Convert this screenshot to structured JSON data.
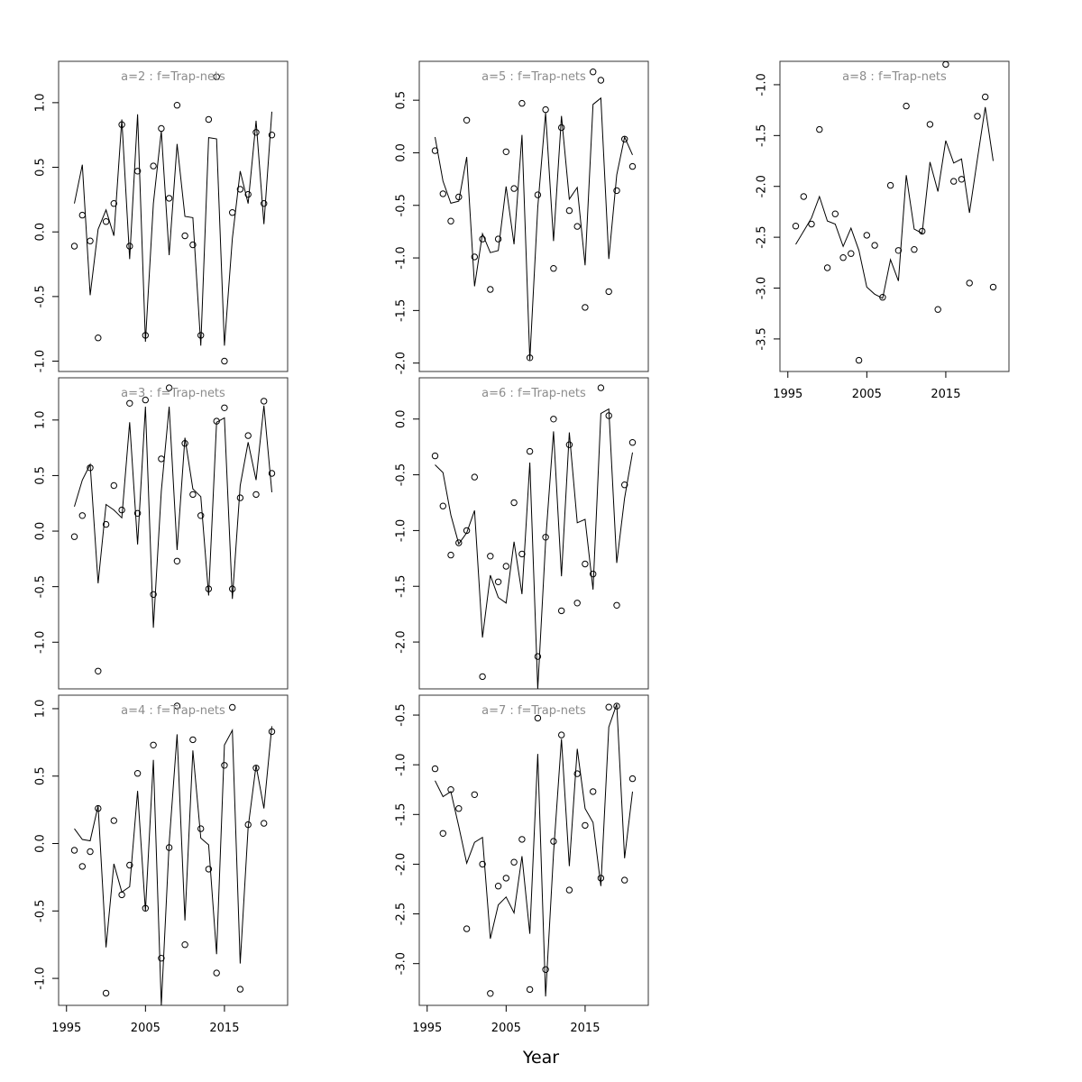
{
  "figure": {
    "xlabel": "Year"
  },
  "colors": {
    "title": "#8c8c8c",
    "marks": "#000000",
    "background": "#ffffff"
  },
  "chart_data": [
    {
      "type": "scatter",
      "title": "a=2 : f=Trap-nets",
      "x_ticks": [
        1995,
        2005,
        2015
      ],
      "y_ticks": [
        1.0,
        0.5,
        0.0,
        -0.5,
        -1.0
      ],
      "xlim": [
        1994,
        2023
      ],
      "ylim": [
        -1.08,
        1.32
      ],
      "show_x_axis": false,
      "x": [
        1996,
        1997,
        1998,
        1999,
        2000,
        2001,
        2002,
        2003,
        2004,
        2005,
        2006,
        2007,
        2008,
        2009,
        2010,
        2011,
        2012,
        2013,
        2014,
        2015,
        2016,
        2017,
        2018,
        2019,
        2020,
        2021
      ],
      "series": [
        {
          "name": "observed",
          "kind": "points",
          "values": [
            -0.11,
            0.13,
            -0.07,
            -0.82,
            0.08,
            0.22,
            0.83,
            -0.11,
            0.47,
            -0.8,
            0.51,
            0.8,
            0.26,
            0.98,
            -0.03,
            -0.1,
            -0.8,
            0.87,
            1.2,
            -1.0,
            0.15,
            0.33,
            0.29,
            0.77,
            0.22,
            0.75
          ]
        },
        {
          "name": "fitted",
          "kind": "line",
          "values": [
            0.22,
            0.52,
            -0.49,
            0.02,
            0.17,
            -0.03,
            0.87,
            -0.21,
            0.91,
            -0.85,
            0.22,
            0.78,
            -0.18,
            0.68,
            0.12,
            0.11,
            -0.88,
            0.73,
            0.72,
            -0.88,
            -0.05,
            0.47,
            0.22,
            0.86,
            0.06,
            0.93
          ]
        }
      ]
    },
    {
      "type": "scatter",
      "title": "a=5 : f=Trap-nets",
      "x_ticks": [
        1995,
        2005,
        2015
      ],
      "y_ticks": [
        0.5,
        0.0,
        -0.5,
        -1.0,
        -1.5,
        -2.0
      ],
      "xlim": [
        1994,
        2023
      ],
      "ylim": [
        -2.08,
        0.87
      ],
      "show_x_axis": false,
      "x": [
        1996,
        1997,
        1998,
        1999,
        2000,
        2001,
        2002,
        2003,
        2004,
        2005,
        2006,
        2007,
        2008,
        2009,
        2010,
        2011,
        2012,
        2013,
        2014,
        2015,
        2016,
        2017,
        2018,
        2019,
        2020,
        2021
      ],
      "series": [
        {
          "name": "observed",
          "kind": "points",
          "values": [
            0.02,
            -0.39,
            -0.65,
            -0.42,
            0.31,
            -0.99,
            -0.82,
            -1.3,
            -0.82,
            0.01,
            -0.34,
            0.47,
            -1.95,
            -0.4,
            0.41,
            -1.1,
            0.24,
            -0.55,
            -0.7,
            -1.47,
            0.77,
            0.69,
            -1.32,
            -0.36,
            0.13,
            -0.13
          ]
        },
        {
          "name": "fitted",
          "kind": "line",
          "values": [
            0.15,
            -0.27,
            -0.48,
            -0.46,
            -0.04,
            -1.27,
            -0.77,
            -0.95,
            -0.93,
            -0.32,
            -0.87,
            0.17,
            -1.97,
            -0.52,
            0.38,
            -0.84,
            0.35,
            -0.44,
            -0.33,
            -1.07,
            0.46,
            0.52,
            -1.01,
            -0.21,
            0.15,
            -0.02
          ]
        }
      ]
    },
    {
      "type": "scatter",
      "title": "a=8 : f=Trap-nets",
      "x_ticks": [
        1995,
        2005,
        2015
      ],
      "y_ticks": [
        -1.0,
        -1.5,
        -2.0,
        -2.5,
        -3.0,
        -3.5
      ],
      "xlim": [
        1994,
        2023
      ],
      "ylim": [
        -3.82,
        -0.77
      ],
      "show_x_axis": true,
      "x": [
        1996,
        1997,
        1998,
        1999,
        2000,
        2001,
        2002,
        2003,
        2004,
        2005,
        2006,
        2007,
        2008,
        2009,
        2010,
        2011,
        2012,
        2013,
        2014,
        2015,
        2016,
        2017,
        2018,
        2019,
        2020,
        2021
      ],
      "series": [
        {
          "name": "observed",
          "kind": "points",
          "values": [
            -2.39,
            -2.1,
            -2.37,
            -1.44,
            -2.8,
            -2.27,
            -2.7,
            -2.66,
            -3.71,
            -2.48,
            -2.58,
            -3.09,
            -1.99,
            -2.63,
            -1.21,
            -2.62,
            -2.44,
            -1.39,
            -3.21,
            -0.8,
            -1.95,
            -1.93,
            -2.95,
            -1.31,
            -1.12,
            -2.99
          ]
        },
        {
          "name": "fitted",
          "kind": "line",
          "values": [
            -2.57,
            -2.44,
            -2.31,
            -2.1,
            -2.34,
            -2.37,
            -2.59,
            -2.41,
            -2.63,
            -2.99,
            -3.06,
            -3.1,
            -2.72,
            -2.93,
            -1.89,
            -2.42,
            -2.46,
            -1.76,
            -2.05,
            -1.55,
            -1.77,
            -1.73,
            -2.26,
            -1.73,
            -1.22,
            -1.75
          ]
        }
      ]
    },
    {
      "type": "scatter",
      "title": "a=3 : f=Trap-nets",
      "x_ticks": [
        1995,
        2005,
        2015
      ],
      "y_ticks": [
        1.0,
        0.5,
        0.0,
        -0.5,
        -1.0
      ],
      "xlim": [
        1994,
        2023
      ],
      "ylim": [
        -1.42,
        1.38
      ],
      "show_x_axis": false,
      "x": [
        1996,
        1997,
        1998,
        1999,
        2000,
        2001,
        2002,
        2003,
        2004,
        2005,
        2006,
        2007,
        2008,
        2009,
        2010,
        2011,
        2012,
        2013,
        2014,
        2015,
        2016,
        2017,
        2018,
        2019,
        2020,
        2021
      ],
      "series": [
        {
          "name": "observed",
          "kind": "points",
          "values": [
            -0.05,
            0.14,
            0.57,
            -1.26,
            0.06,
            0.41,
            0.19,
            1.15,
            0.16,
            1.18,
            -0.57,
            0.65,
            1.29,
            -0.27,
            0.79,
            0.33,
            0.14,
            -0.52,
            0.99,
            1.11,
            -0.52,
            0.3,
            0.86,
            0.33,
            1.17,
            0.52
          ]
        },
        {
          "name": "fitted",
          "kind": "line",
          "values": [
            0.22,
            0.46,
            0.6,
            -0.47,
            0.24,
            0.19,
            0.12,
            0.98,
            -0.12,
            1.12,
            -0.87,
            0.36,
            1.12,
            -0.17,
            0.84,
            0.38,
            0.31,
            -0.58,
            0.98,
            1.02,
            -0.61,
            0.41,
            0.8,
            0.46,
            1.13,
            0.35
          ]
        }
      ]
    },
    {
      "type": "scatter",
      "title": "a=6 : f=Trap-nets",
      "x_ticks": [
        1995,
        2005,
        2015
      ],
      "y_ticks": [
        0.0,
        -0.5,
        -1.0,
        -1.5,
        -2.0
      ],
      "xlim": [
        1994,
        2023
      ],
      "ylim": [
        -2.42,
        0.37
      ],
      "show_x_axis": false,
      "x": [
        1996,
        1997,
        1998,
        1999,
        2000,
        2001,
        2002,
        2003,
        2004,
        2005,
        2006,
        2007,
        2008,
        2009,
        2010,
        2011,
        2012,
        2013,
        2014,
        2015,
        2016,
        2017,
        2018,
        2019,
        2020,
        2021
      ],
      "series": [
        {
          "name": "observed",
          "kind": "points",
          "values": [
            -0.33,
            -0.78,
            -1.22,
            -1.11,
            -1.0,
            -0.52,
            -2.31,
            -1.23,
            -1.46,
            -1.32,
            -0.75,
            -1.21,
            -0.29,
            -2.13,
            -1.06,
            0.0,
            -1.72,
            -0.23,
            -1.65,
            -1.3,
            -1.39,
            0.28,
            0.03,
            -1.67,
            -0.59,
            -0.21
          ]
        },
        {
          "name": "fitted",
          "kind": "line",
          "values": [
            -0.41,
            -0.48,
            -0.86,
            -1.12,
            -1.02,
            -0.82,
            -1.96,
            -1.4,
            -1.6,
            -1.65,
            -1.1,
            -1.57,
            -0.39,
            -2.42,
            -1.1,
            -0.11,
            -1.41,
            -0.12,
            -0.93,
            -0.9,
            -1.53,
            0.05,
            0.09,
            -1.29,
            -0.71,
            -0.3
          ]
        }
      ]
    },
    {
      "type": "scatter",
      "title": "a=4 : f=Trap-nets",
      "x_ticks": [
        1995,
        2005,
        2015
      ],
      "y_ticks": [
        1.0,
        0.5,
        0.0,
        -0.5,
        -1.0
      ],
      "xlim": [
        1994,
        2023
      ],
      "ylim": [
        -1.2,
        1.1
      ],
      "show_x_axis": true,
      "x": [
        1996,
        1997,
        1998,
        1999,
        2000,
        2001,
        2002,
        2003,
        2004,
        2005,
        2006,
        2007,
        2008,
        2009,
        2010,
        2011,
        2012,
        2013,
        2014,
        2015,
        2016,
        2017,
        2018,
        2019,
        2020,
        2021
      ],
      "series": [
        {
          "name": "observed",
          "kind": "points",
          "values": [
            -0.05,
            -0.17,
            -0.06,
            0.26,
            -1.11,
            0.17,
            -0.38,
            -0.16,
            0.52,
            -0.48,
            0.73,
            -0.85,
            -0.03,
            1.02,
            -0.75,
            0.77,
            0.11,
            -0.19,
            -0.96,
            0.58,
            1.01,
            -1.08,
            0.14,
            0.56,
            0.15,
            0.83
          ]
        },
        {
          "name": "fitted",
          "kind": "line",
          "values": [
            0.11,
            0.03,
            0.02,
            0.28,
            -0.77,
            -0.15,
            -0.36,
            -0.32,
            0.39,
            -0.5,
            0.62,
            -1.2,
            0.0,
            0.81,
            -0.57,
            0.69,
            0.04,
            -0.01,
            -0.82,
            0.73,
            0.84,
            -0.89,
            0.12,
            0.58,
            0.26,
            0.87
          ]
        }
      ]
    },
    {
      "type": "scatter",
      "title": "a=7 : f=Trap-nets",
      "x_ticks": [
        1995,
        2005,
        2015
      ],
      "y_ticks": [
        -0.5,
        -1.0,
        -1.5,
        -2.0,
        -2.5,
        -3.0
      ],
      "xlim": [
        1994,
        2023
      ],
      "ylim": [
        -3.42,
        -0.3
      ],
      "show_x_axis": true,
      "x": [
        1996,
        1997,
        1998,
        1999,
        2000,
        2001,
        2002,
        2003,
        2004,
        2005,
        2006,
        2007,
        2008,
        2009,
        2010,
        2011,
        2012,
        2013,
        2014,
        2015,
        2016,
        2017,
        2018,
        2019,
        2020,
        2021
      ],
      "series": [
        {
          "name": "observed",
          "kind": "points",
          "values": [
            -1.04,
            -1.69,
            -1.25,
            -1.44,
            -2.65,
            -1.3,
            -2.0,
            -3.3,
            -2.22,
            -2.14,
            -1.98,
            -1.75,
            -3.26,
            -0.53,
            -3.06,
            -1.77,
            -0.7,
            -2.26,
            -1.09,
            -1.61,
            -1.27,
            -2.14,
            -0.42,
            -0.41,
            -2.16,
            -1.14
          ]
        },
        {
          "name": "fitted",
          "kind": "line",
          "values": [
            -1.16,
            -1.32,
            -1.27,
            -1.62,
            -1.99,
            -1.78,
            -1.73,
            -2.75,
            -2.41,
            -2.33,
            -2.49,
            -1.92,
            -2.7,
            -0.89,
            -3.33,
            -1.89,
            -0.74,
            -2.02,
            -0.84,
            -1.44,
            -1.58,
            -2.22,
            -0.62,
            -0.39,
            -1.94,
            -1.27
          ]
        }
      ]
    }
  ]
}
